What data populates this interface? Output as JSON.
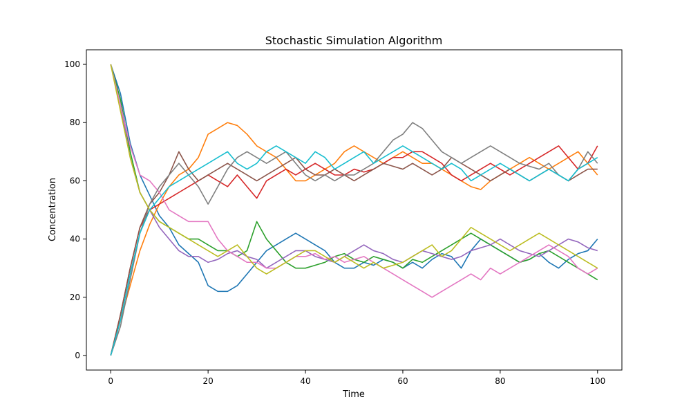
{
  "chart_data": {
    "type": "line",
    "title": "Stochastic Simulation Algorithm",
    "xlabel": "Time",
    "ylabel": "Concentration",
    "xlim": [
      -5,
      105
    ],
    "ylim": [
      -5,
      105
    ],
    "xticks": [
      0,
      20,
      40,
      60,
      80,
      100
    ],
    "yticks": [
      0,
      20,
      40,
      60,
      80,
      100
    ],
    "xtick_labels": [
      "0",
      "20",
      "40",
      "60",
      "80",
      "100"
    ],
    "ytick_labels": [
      "0",
      "20",
      "40",
      "60",
      "80",
      "100"
    ],
    "grid": false,
    "legend": false,
    "x": [
      0,
      2,
      4,
      6,
      8,
      10,
      12,
      14,
      16,
      18,
      20,
      22,
      24,
      26,
      28,
      30,
      32,
      34,
      36,
      38,
      40,
      42,
      44,
      46,
      48,
      50,
      52,
      54,
      56,
      58,
      60,
      62,
      64,
      66,
      68,
      70,
      72,
      74,
      76,
      78,
      80,
      82,
      84,
      86,
      88,
      90,
      92,
      94,
      96,
      98,
      100
    ],
    "series": [
      {
        "color": "#1f77b4",
        "values": [
          100,
          90,
          73,
          62,
          55,
          48,
          44,
          38,
          35,
          32,
          24,
          22,
          22,
          24,
          28,
          32,
          36,
          38,
          40,
          42,
          40,
          38,
          36,
          32,
          30,
          30,
          32,
          31,
          33,
          32,
          30,
          32,
          30,
          33,
          35,
          34,
          30,
          36,
          40,
          38,
          36,
          34,
          32,
          33,
          35,
          32,
          30,
          33,
          35,
          36,
          40
        ]
      },
      {
        "color": "#ff7f0e",
        "values": [
          0,
          12,
          24,
          36,
          45,
          52,
          58,
          62,
          64,
          68,
          76,
          78,
          80,
          79,
          76,
          72,
          70,
          68,
          64,
          60,
          60,
          62,
          64,
          66,
          70,
          72,
          70,
          68,
          66,
          68,
          70,
          68,
          66,
          66,
          64,
          62,
          60,
          58,
          57,
          60,
          62,
          64,
          66,
          68,
          66,
          64,
          66,
          68,
          70,
          66,
          62
        ]
      },
      {
        "color": "#2ca02c",
        "values": [
          100,
          88,
          70,
          56,
          50,
          46,
          44,
          42,
          40,
          40,
          38,
          36,
          36,
          34,
          36,
          46,
          40,
          36,
          32,
          30,
          30,
          31,
          32,
          34,
          35,
          33,
          32,
          34,
          33,
          32,
          30,
          33,
          32,
          34,
          36,
          38,
          40,
          42,
          40,
          38,
          36,
          34,
          32,
          33,
          35,
          36,
          34,
          32,
          30,
          28,
          26
        ]
      },
      {
        "color": "#d62728",
        "values": [
          0,
          14,
          30,
          44,
          50,
          52,
          54,
          56,
          58,
          60,
          62,
          60,
          58,
          62,
          58,
          54,
          60,
          62,
          64,
          62,
          64,
          66,
          64,
          62,
          62,
          64,
          63,
          64,
          66,
          68,
          68,
          70,
          70,
          68,
          66,
          62,
          60,
          62,
          64,
          66,
          64,
          62,
          64,
          66,
          68,
          70,
          72,
          68,
          64,
          66,
          72
        ]
      },
      {
        "color": "#9467bd",
        "values": [
          100,
          86,
          68,
          56,
          50,
          44,
          40,
          36,
          34,
          34,
          32,
          33,
          35,
          36,
          34,
          33,
          30,
          32,
          34,
          36,
          36,
          34,
          33,
          32,
          34,
          36,
          38,
          36,
          35,
          33,
          32,
          34,
          36,
          35,
          34,
          33,
          34,
          36,
          37,
          38,
          40,
          38,
          36,
          35,
          34,
          36,
          38,
          40,
          39,
          37,
          36
        ]
      },
      {
        "color": "#8c564b",
        "values": [
          0,
          14,
          30,
          44,
          52,
          56,
          62,
          70,
          64,
          60,
          62,
          64,
          66,
          64,
          62,
          60,
          62,
          64,
          66,
          68,
          64,
          62,
          62,
          64,
          62,
          60,
          62,
          64,
          66,
          65,
          64,
          66,
          64,
          62,
          64,
          68,
          66,
          64,
          62,
          60,
          62,
          64,
          62,
          60,
          62,
          64,
          62,
          60,
          62,
          64,
          64
        ]
      },
      {
        "color": "#e377c2",
        "values": [
          100,
          86,
          72,
          62,
          60,
          56,
          50,
          48,
          46,
          46,
          46,
          40,
          36,
          34,
          32,
          32,
          30,
          30,
          32,
          34,
          34,
          35,
          33,
          34,
          32,
          33,
          34,
          32,
          30,
          28,
          26,
          24,
          22,
          20,
          22,
          24,
          26,
          28,
          26,
          30,
          28,
          30,
          32,
          34,
          36,
          38,
          36,
          34,
          30,
          28,
          30
        ]
      },
      {
        "color": "#7f7f7f",
        "values": [
          0,
          10,
          26,
          42,
          52,
          58,
          62,
          66,
          62,
          58,
          52,
          58,
          64,
          68,
          70,
          68,
          66,
          68,
          70,
          66,
          62,
          60,
          62,
          60,
          62,
          62,
          64,
          66,
          70,
          74,
          76,
          80,
          78,
          74,
          70,
          68,
          66,
          68,
          70,
          72,
          70,
          68,
          66,
          65,
          64,
          66,
          62,
          60,
          64,
          70,
          66
        ]
      },
      {
        "color": "#bcbd22",
        "values": [
          100,
          84,
          68,
          56,
          50,
          46,
          44,
          42,
          40,
          38,
          36,
          34,
          36,
          38,
          34,
          30,
          28,
          30,
          32,
          34,
          36,
          36,
          34,
          32,
          34,
          32,
          30,
          32,
          30,
          31,
          32,
          34,
          36,
          38,
          34,
          36,
          40,
          44,
          42,
          40,
          38,
          36,
          38,
          40,
          42,
          40,
          38,
          36,
          34,
          32,
          30
        ]
      },
      {
        "color": "#17becf",
        "values": [
          0,
          12,
          28,
          42,
          50,
          54,
          58,
          60,
          62,
          64,
          66,
          68,
          70,
          66,
          64,
          66,
          70,
          72,
          70,
          68,
          66,
          70,
          68,
          64,
          66,
          68,
          70,
          66,
          68,
          70,
          72,
          70,
          68,
          66,
          64,
          66,
          64,
          60,
          62,
          64,
          66,
          64,
          62,
          60,
          62,
          64,
          62,
          60,
          64,
          66,
          68
        ]
      }
    ]
  }
}
